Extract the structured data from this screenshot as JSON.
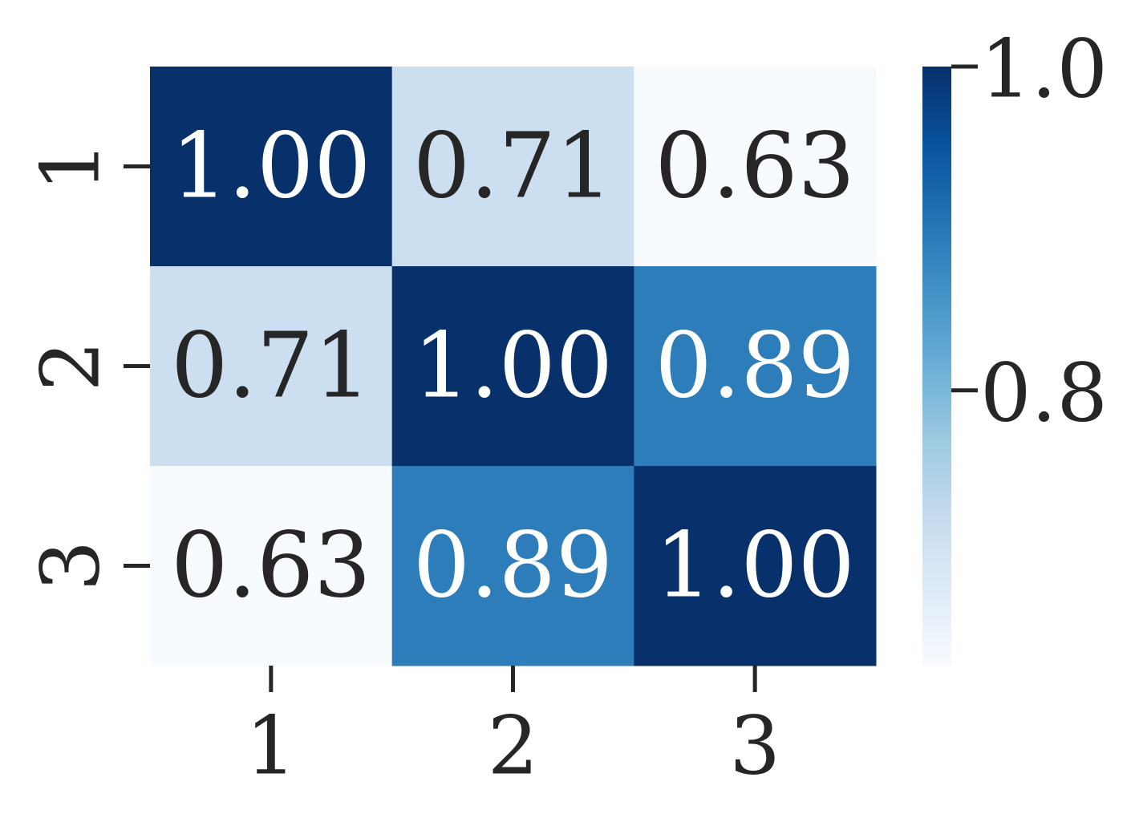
{
  "chart_data": {
    "type": "heatmap",
    "x_categories": [
      "1",
      "2",
      "3"
    ],
    "y_categories": [
      "1",
      "2",
      "3"
    ],
    "values": [
      [
        1.0,
        0.71,
        0.63
      ],
      [
        0.71,
        1.0,
        0.89
      ],
      [
        0.63,
        0.89,
        1.0
      ]
    ],
    "value_labels": [
      [
        "1.00",
        "0.71",
        "0.63"
      ],
      [
        "0.71",
        "1.00",
        "0.89"
      ],
      [
        "0.63",
        "0.89",
        "1.00"
      ]
    ],
    "colormap": "Blues",
    "zlim": [
      0.63,
      1.0
    ],
    "zticks": [
      0.8,
      {
        "value": 1.0,
        "label": "1.0"
      }
    ]
  }
}
